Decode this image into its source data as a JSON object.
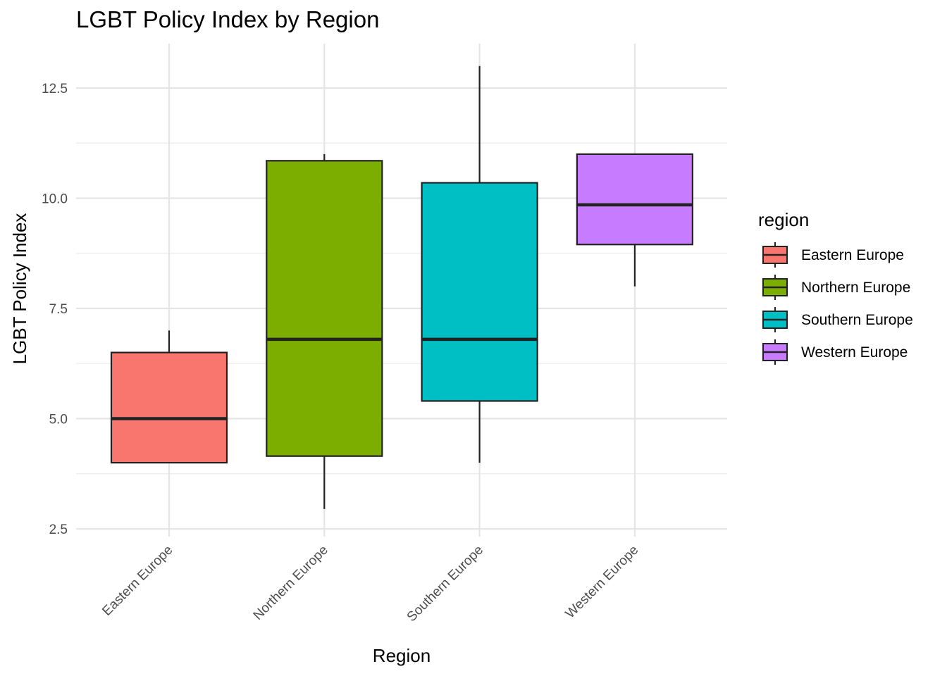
{
  "chart_data": {
    "type": "boxplot",
    "title": "LGBT Policy Index by Region",
    "xlabel": "Region",
    "ylabel": "LGBT Policy Index",
    "ylim": [
      2.35,
      13.5
    ],
    "y_ticks": [
      2.5,
      5.0,
      7.5,
      10.0,
      12.5
    ],
    "y_tick_labels": [
      "2.5",
      "5.0",
      "7.5",
      "10.0",
      "12.5"
    ],
    "grid": true,
    "legend": {
      "title": "region",
      "placement": "right"
    },
    "categories": [
      "Eastern Europe",
      "Northern Europe",
      "Southern Europe",
      "Western Europe"
    ],
    "series": [
      {
        "name": "Eastern Europe",
        "color": "#F8766D",
        "whisker_low": 4.0,
        "q1": 4.0,
        "median": 5.0,
        "q3": 6.5,
        "whisker_high": 7.0
      },
      {
        "name": "Northern Europe",
        "color": "#7CAE00",
        "whisker_low": 2.95,
        "q1": 4.15,
        "median": 6.8,
        "q3": 10.85,
        "whisker_high": 11.0
      },
      {
        "name": "Southern Europe",
        "color": "#00BFC4",
        "whisker_low": 4.0,
        "q1": 5.4,
        "median": 6.8,
        "q3": 10.35,
        "whisker_high": 13.0
      },
      {
        "name": "Western Europe",
        "color": "#C77CFF",
        "whisker_low": 8.0,
        "q1": 8.95,
        "median": 9.85,
        "q3": 11.0,
        "whisker_high": 11.0
      }
    ]
  }
}
